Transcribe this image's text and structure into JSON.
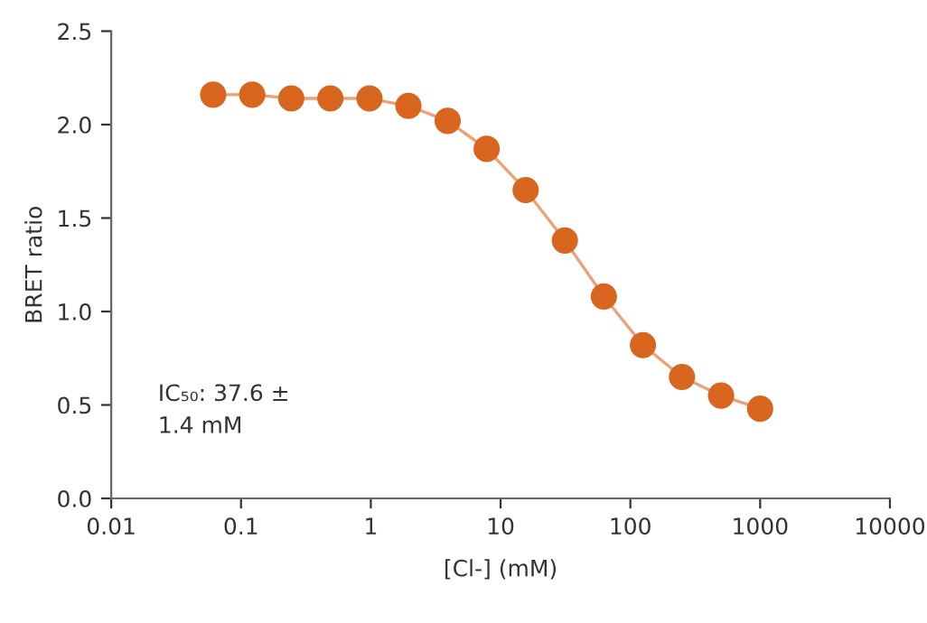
{
  "chart_data": {
    "type": "line",
    "xlabel": "[Cl-] (mM)",
    "ylabel": "BRET ratio",
    "log": "x",
    "xlim": [
      0.01,
      10000
    ],
    "xticks": [
      0.01,
      0.1,
      1,
      10,
      100,
      1000,
      10000
    ],
    "ylim": [
      0,
      2.5
    ],
    "yticks": [
      {
        "value": 0,
        "label": "0.0"
      },
      0.5,
      {
        "value": 1,
        "label": "1.0"
      },
      1.5,
      {
        "value": 2,
        "label": "2.0"
      },
      2.5
    ],
    "x": [
      0.061,
      0.122,
      0.244,
      0.488,
      0.977,
      1.95,
      3.91,
      7.81,
      15.6,
      31.3,
      62.5,
      125,
      250,
      500,
      1000
    ],
    "series": [
      {
        "color": "#d9661f",
        "values": [
          2.16,
          2.16,
          2.14,
          2.14,
          2.14,
          2.1,
          2.02,
          1.87,
          1.65,
          1.38,
          1.08,
          0.82,
          0.65,
          0.55,
          0.48
        ]
      }
    ],
    "marker": "circle",
    "line_style": "solid",
    "grid": false,
    "legend": false,
    "annotations": [
      "IC₅₀: 37.6 ±\n1.4 mM"
    ]
  }
}
